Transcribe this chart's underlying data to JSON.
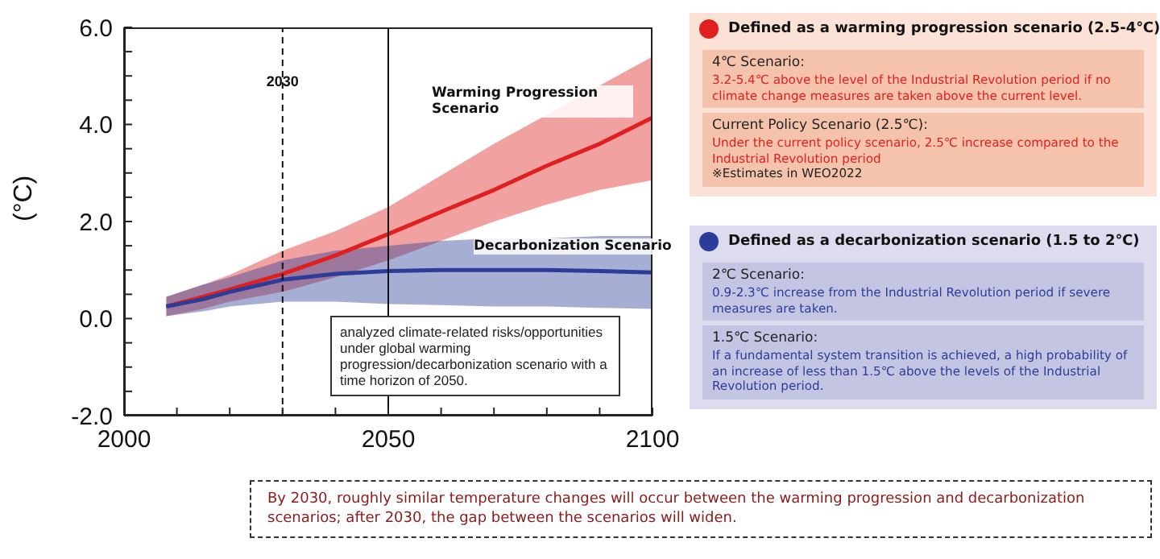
{
  "chart_data": {
    "type": "line",
    "ylabel": "(°C)",
    "x": [
      2008,
      2015,
      2020,
      2030,
      2040,
      2050,
      2060,
      2070,
      2080,
      2090,
      2100
    ],
    "xlim": [
      2000,
      2100
    ],
    "xticks": [
      2000,
      {
        "value": 2010,
        "label": null
      },
      {
        "value": 2020,
        "label": null
      },
      {
        "value": 2030,
        "label": null
      },
      {
        "value": 2040,
        "label": null
      },
      2050,
      {
        "value": 2060,
        "label": null
      },
      {
        "value": 2070,
        "label": null
      },
      {
        "value": 2080,
        "label": null
      },
      {
        "value": 2090,
        "label": null
      },
      2100
    ],
    "ylim": [
      -2,
      6
    ],
    "yticks": [
      {
        "value": -2,
        "label": "-2.0"
      },
      {
        "value": -1.5,
        "label": null
      },
      {
        "value": -1,
        "label": null
      },
      {
        "value": -0.5,
        "label": null
      },
      {
        "value": 0,
        "label": "0.0"
      },
      {
        "value": 0.5,
        "label": null
      },
      {
        "value": 1,
        "label": null
      },
      {
        "value": 1.5,
        "label": null
      },
      {
        "value": 2,
        "label": "2.0"
      },
      {
        "value": 2.5,
        "label": null
      },
      {
        "value": 3,
        "label": null
      },
      {
        "value": 3.5,
        "label": null
      },
      {
        "value": 4,
        "label": "4.0"
      },
      {
        "value": 4.5,
        "label": null
      },
      {
        "value": 5,
        "label": null
      },
      {
        "value": 5.5,
        "label": null
      },
      {
        "value": 6,
        "label": "6.0"
      }
    ],
    "series": [
      {
        "name": "Warming Progression Scenario",
        "color": "#e01f1f",
        "values": [
          0.25,
          0.45,
          0.6,
          0.92,
          1.3,
          1.74,
          2.2,
          2.65,
          3.15,
          3.6,
          4.14
        ],
        "lower": [
          0.05,
          0.2,
          0.35,
          0.55,
          0.85,
          1.2,
          1.6,
          2.0,
          2.35,
          2.65,
          2.85
        ],
        "upper": [
          0.45,
          0.7,
          0.9,
          1.4,
          1.8,
          2.3,
          2.95,
          3.6,
          4.2,
          4.8,
          5.4
        ]
      },
      {
        "name": "Decarbonization Scenario",
        "color": "#2b3d98",
        "values": [
          0.25,
          0.4,
          0.55,
          0.8,
          0.92,
          0.98,
          1.0,
          1.0,
          1.0,
          0.98,
          0.95
        ],
        "lower": [
          0.05,
          0.15,
          0.25,
          0.35,
          0.35,
          0.3,
          0.28,
          0.25,
          0.25,
          0.22,
          0.2
        ],
        "upper": [
          0.45,
          0.7,
          0.85,
          1.2,
          1.4,
          1.5,
          1.6,
          1.65,
          1.65,
          1.7,
          1.7
        ]
      }
    ],
    "ref_lines": [
      {
        "axis": "x",
        "value": 2030,
        "label": "2030",
        "line_style": "dashed"
      },
      {
        "axis": "x",
        "value": 2050,
        "line_style": "solid"
      }
    ],
    "annotations": [
      "Defined as a warming progression scenario (2.5-4℃)",
      "4℃ Scenario:",
      "3.2-5.4℃ above the level of the Industrial Revolution period if no climate change measures are taken above the current level.",
      "Current Policy Scenario (2.5℃):",
      "Under the current policy scenario, 2.5℃ increase compared to the Industrial Revolution period",
      "※Estimates in WEO2022",
      "Defined as a decarbonization scenario (1.5 to 2℃)",
      "2℃ Scenario:",
      "0.9-2.3℃ increase from the Industrial Revolution period if severe measures are taken.",
      "1.5℃ Scenario:",
      "If a fundamental system transition is achieved, a high probability of an increase of less than 1.5℃ above the levels of the Industrial Revolution period.",
      "analyzed climate-related risks/opportunities under global warming progression/decarbonization scenario with a time horizon of 2050.",
      "By 2030, roughly similar temperature changes will occur between the warming progression and decarbonization scenarios; after 2030, the gap between the scenarios will widen."
    ]
  }
}
